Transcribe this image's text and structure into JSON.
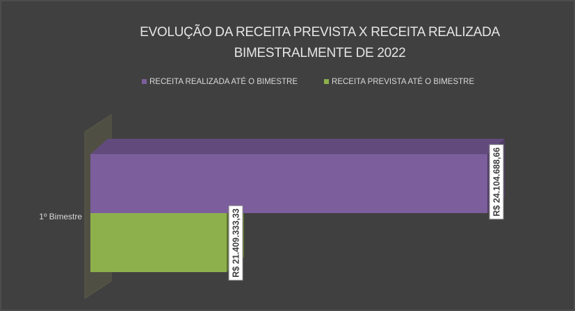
{
  "chart_data": {
    "type": "bar",
    "orientation": "horizontal",
    "title": "EVOLUÇÃO DA RECEITA PREVISTA X RECEITA REALIZADA BIMESTRALMENTE DE 2022",
    "categories": [
      "1º Bimestre"
    ],
    "series": [
      {
        "name": "RECEITA REALIZADA ATÉ O BIMESTRE",
        "color": "#7b5e9b",
        "values": [
          24104688.66
        ],
        "value_labels": [
          "R$ 24.104.688,66"
        ]
      },
      {
        "name": "RECEITA PREVISTA ATÉ O BIMESTRE",
        "color": "#8db04c",
        "values": [
          21409333.33
        ],
        "value_labels": [
          "R$ 21.409.333,33"
        ]
      }
    ],
    "xlim": [
      20000000,
      24500000
    ],
    "legend": "top"
  }
}
